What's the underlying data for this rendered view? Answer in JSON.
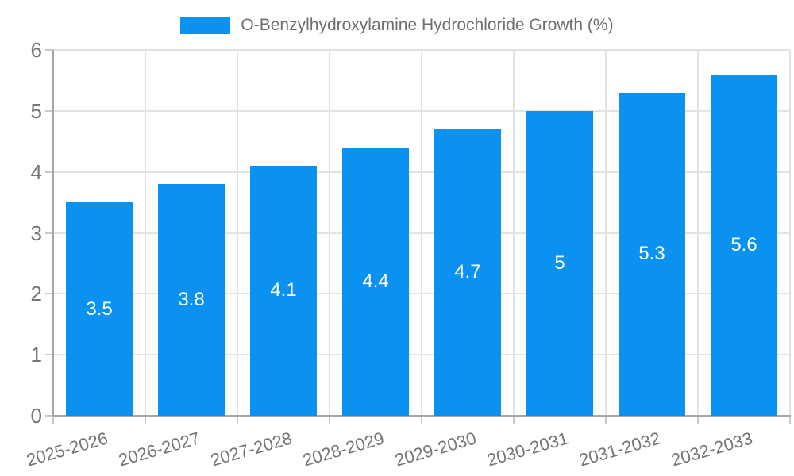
{
  "chart_data": {
    "type": "bar",
    "title": "O-Benzylhydroxylamine Hydrochloride Growth (%)",
    "categories": [
      "2025-2026",
      "2026-2027",
      "2027-2028",
      "2028-2029",
      "2029-2030",
      "2030-2031",
      "2031-2032",
      "2032-2033"
    ],
    "values": [
      3.5,
      3.8,
      4.1,
      4.4,
      4.7,
      5,
      5.3,
      5.6
    ],
    "value_labels": [
      "3.5",
      "3.8",
      "4.1",
      "4.4",
      "4.7",
      "5",
      "5.3",
      "5.6"
    ],
    "xlabel": "",
    "ylabel": "",
    "ylim": [
      0,
      6
    ],
    "yticks": [
      0,
      1,
      2,
      3,
      4,
      5,
      6
    ],
    "grid": true,
    "legend_position": "top-center",
    "colors": {
      "bar": "#0b91f0",
      "value_text": "#ffffff",
      "tick_text": "#757575",
      "legend_text": "#6e6e6e",
      "gridline": "#e3e3e3",
      "axis": "#a6a6a6",
      "tick_mark": "#c9c9c9",
      "background": "#ffffff"
    }
  }
}
